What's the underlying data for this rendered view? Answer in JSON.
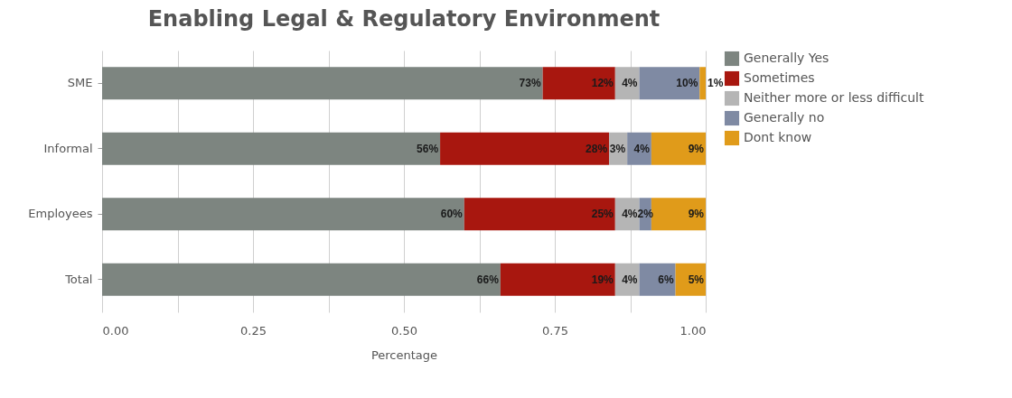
{
  "chart_data": {
    "type": "bar",
    "orientation": "horizontal",
    "stacked": true,
    "title": "Enabling Legal & Regulatory Environment",
    "xlabel": "Percentage",
    "categories": [
      "SME",
      "Informal",
      "Employees",
      "Total"
    ],
    "series": [
      {
        "name": "Generally Yes",
        "color": "#7d8580",
        "values": [
          0.73,
          0.56,
          0.6,
          0.66
        ],
        "value_labels": [
          "73%",
          "56%",
          "60%",
          "66%"
        ]
      },
      {
        "name": "Sometimes",
        "color": "#a8170f",
        "values": [
          0.12,
          0.28,
          0.25,
          0.19
        ],
        "value_labels": [
          "12%",
          "28%",
          "25%",
          "19%"
        ]
      },
      {
        "name": "Neither more or less difficult",
        "color": "#b5b5b5",
        "values": [
          0.04,
          0.03,
          0.04,
          0.04
        ],
        "value_labels": [
          "4%",
          "3%",
          "4%",
          "4%"
        ]
      },
      {
        "name": "Generally no",
        "color": "#7f8aa3",
        "values": [
          0.1,
          0.04,
          0.02,
          0.06
        ],
        "value_labels": [
          "10%",
          "4%",
          "2%",
          "6%"
        ]
      },
      {
        "name": "Dont know",
        "color": "#e09b1a",
        "values": [
          0.01,
          0.09,
          0.09,
          0.05
        ],
        "value_labels": [
          "1%",
          "9%",
          "9%",
          "5%"
        ]
      }
    ],
    "xlim": [
      0,
      1
    ],
    "xticks": [
      {
        "value": 0,
        "label": "0.00"
      },
      {
        "value": 0.125,
        "label": null
      },
      {
        "value": 0.25,
        "label": "0.25"
      },
      {
        "value": 0.375,
        "label": null
      },
      {
        "value": 0.5,
        "label": "0.50"
      },
      {
        "value": 0.625,
        "label": null
      },
      {
        "value": 0.75,
        "label": "0.75"
      },
      {
        "value": 0.875,
        "label": null
      },
      {
        "value": 1,
        "label": "1.00"
      }
    ],
    "grid": "x",
    "legend": "right"
  }
}
